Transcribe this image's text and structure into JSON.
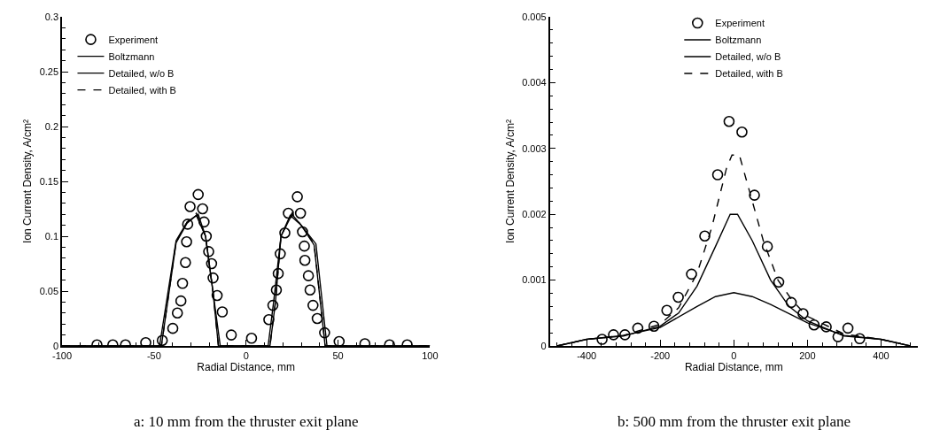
{
  "chart_data": [
    {
      "type": "line",
      "xlabel": "Radial Distance, mm",
      "ylabel": "Ion Current Density, A/cm²",
      "xlim": [
        -100,
        100
      ],
      "xticks": [
        -100,
        -50,
        0,
        50,
        100
      ],
      "ylim": [
        0,
        0.3
      ],
      "yticks": [
        0,
        0.05,
        0.1,
        0.15,
        0.2,
        0.25,
        0.3
      ],
      "grid": false,
      "legend": "top left",
      "annotations": [
        "a: 10 mm from the thruster exit plane"
      ],
      "series": [
        {
          "name": "Experiment",
          "type": "scatter",
          "marker": "circle",
          "color": "#000000",
          "x": [
            -81,
            -72.4,
            -65.5,
            -54.5,
            -45.5,
            -39.8,
            -37.3,
            -35.4,
            -34.5,
            -32.9,
            -32.3,
            -31.7,
            -30.4,
            -26,
            -23.6,
            -22.8,
            -21.6,
            -20.3,
            -18.7,
            -17.9,
            -15.7,
            -12.9,
            -8,
            3,
            12.4,
            14.6,
            16.5,
            17.5,
            18.6,
            21.1,
            23,
            27.9,
            29.6,
            30.7,
            31.7,
            32,
            33.9,
            34.8,
            36.4,
            38.7,
            42.7,
            50.6,
            64.6,
            78,
            87.6
          ],
          "values": [
            0.001,
            0.001,
            0.001,
            0.003,
            0.005,
            0.016,
            0.03,
            0.041,
            0.057,
            0.076,
            0.095,
            0.111,
            0.127,
            0.138,
            0.125,
            0.113,
            0.1,
            0.086,
            0.075,
            0.062,
            0.046,
            0.031,
            0.01,
            0.007,
            0.024,
            0.037,
            0.051,
            0.066,
            0.084,
            0.103,
            0.121,
            0.136,
            0.121,
            0.104,
            0.091,
            0.078,
            0.064,
            0.051,
            0.037,
            0.025,
            0.012,
            0.004,
            0.002,
            0.001,
            0.001
          ]
        },
        {
          "name": "Boltzmann",
          "line_style": "solid",
          "color": "#000000",
          "x": [
            -100,
            -47,
            -38,
            -32,
            -26,
            -22,
            -18,
            -14,
            12,
            15,
            19,
            25,
            30,
            38,
            44,
            100
          ],
          "values": [
            0,
            0,
            0.096,
            0.113,
            0.12,
            0.1,
            0.05,
            0,
            0,
            0.04,
            0.1,
            0.12,
            0.11,
            0.093,
            0,
            0
          ]
        },
        {
          "name": "Detailed, w/o B",
          "line_style": "solid",
          "color": "#000000",
          "x": [
            -100,
            -46,
            -38,
            -32,
            -27,
            -22,
            -18,
            -15,
            13,
            16,
            19,
            24,
            30,
            37,
            43,
            100
          ],
          "values": [
            0,
            0,
            0.094,
            0.112,
            0.119,
            0.1,
            0.05,
            0,
            0,
            0.04,
            0.1,
            0.119,
            0.11,
            0.092,
            0,
            0
          ]
        },
        {
          "name": "Detailed, with B",
          "line_style": "dashed",
          "color": "#000000",
          "x": [
            -100,
            -46,
            -38,
            -32,
            -27,
            -22,
            -18,
            -15,
            13,
            16,
            19,
            25,
            30,
            37,
            43,
            100
          ],
          "values": [
            0,
            0,
            0.095,
            0.113,
            0.121,
            0.1,
            0.05,
            0,
            0,
            0.04,
            0.1,
            0.121,
            0.11,
            0.093,
            0,
            0
          ]
        }
      ]
    },
    {
      "type": "line",
      "xlabel": "Radial Distance, mm",
      "ylabel": "Ion Current Density, A/cm²",
      "xlim": [
        -500,
        500
      ],
      "xticks": [
        -400,
        -200,
        0,
        200,
        400
      ],
      "ylim": [
        0,
        0.005
      ],
      "yticks": [
        0,
        0.001,
        0.002,
        0.003,
        0.004,
        0.005
      ],
      "grid": false,
      "legend": "top",
      "annotations": [
        "b: 500 mm from the thruster exit plane"
      ],
      "series": [
        {
          "name": "Experiment",
          "type": "scatter",
          "marker": "circle",
          "color": "#000000",
          "x": [
            -358,
            -327,
            -296,
            -261,
            -217,
            -182,
            -151,
            -115,
            -79,
            -44,
            -13,
            22,
            56,
            91,
            122,
            156,
            188,
            218,
            251,
            283,
            310,
            342
          ],
          "values": [
            0.0001,
            0.00017,
            0.00017,
            0.00027,
            0.0003,
            0.00054,
            0.00074,
            0.00109,
            0.00167,
            0.0026,
            0.00341,
            0.00325,
            0.00229,
            0.00151,
            0.00097,
            0.00066,
            0.00049,
            0.00032,
            0.00029,
            0.00014,
            0.00027,
            0.00011
          ]
        },
        {
          "name": "Boltzmann",
          "line_style": "solid",
          "color": "#000000",
          "x": [
            -480,
            -400,
            -300,
            -200,
            -100,
            -50,
            0,
            50,
            100,
            200,
            300,
            400,
            480
          ],
          "values": [
            0,
            0.0001,
            0.00016,
            0.00028,
            0.0006,
            0.00075,
            0.00081,
            0.00075,
            0.00063,
            0.00035,
            0.00016,
            0.0001,
            0
          ]
        },
        {
          "name": "Detailed, w/o B",
          "line_style": "solid",
          "color": "#000000",
          "x": [
            -480,
            -400,
            -300,
            -200,
            -150,
            -100,
            -50,
            -10,
            10,
            50,
            100,
            150,
            200,
            300,
            400,
            480
          ],
          "values": [
            0,
            0.0001,
            0.00015,
            0.0003,
            0.0005,
            0.00091,
            0.00151,
            0.002,
            0.002,
            0.0016,
            0.001,
            0.0006,
            0.00038,
            0.00015,
            0.0001,
            0
          ]
        },
        {
          "name": "Detailed, with B",
          "line_style": "dashed",
          "color": "#000000",
          "x": [
            -480,
            -400,
            -300,
            -200,
            -150,
            -100,
            -60,
            -20,
            -5,
            15,
            40,
            80,
            120,
            160,
            200,
            300,
            400,
            480
          ],
          "values": [
            0,
            0.0001,
            0.00016,
            0.00033,
            0.00058,
            0.0011,
            0.0018,
            0.0027,
            0.0029,
            0.0029,
            0.0024,
            0.0016,
            0.001,
            0.00068,
            0.00045,
            0.00018,
            0.0001,
            0
          ]
        }
      ]
    }
  ]
}
